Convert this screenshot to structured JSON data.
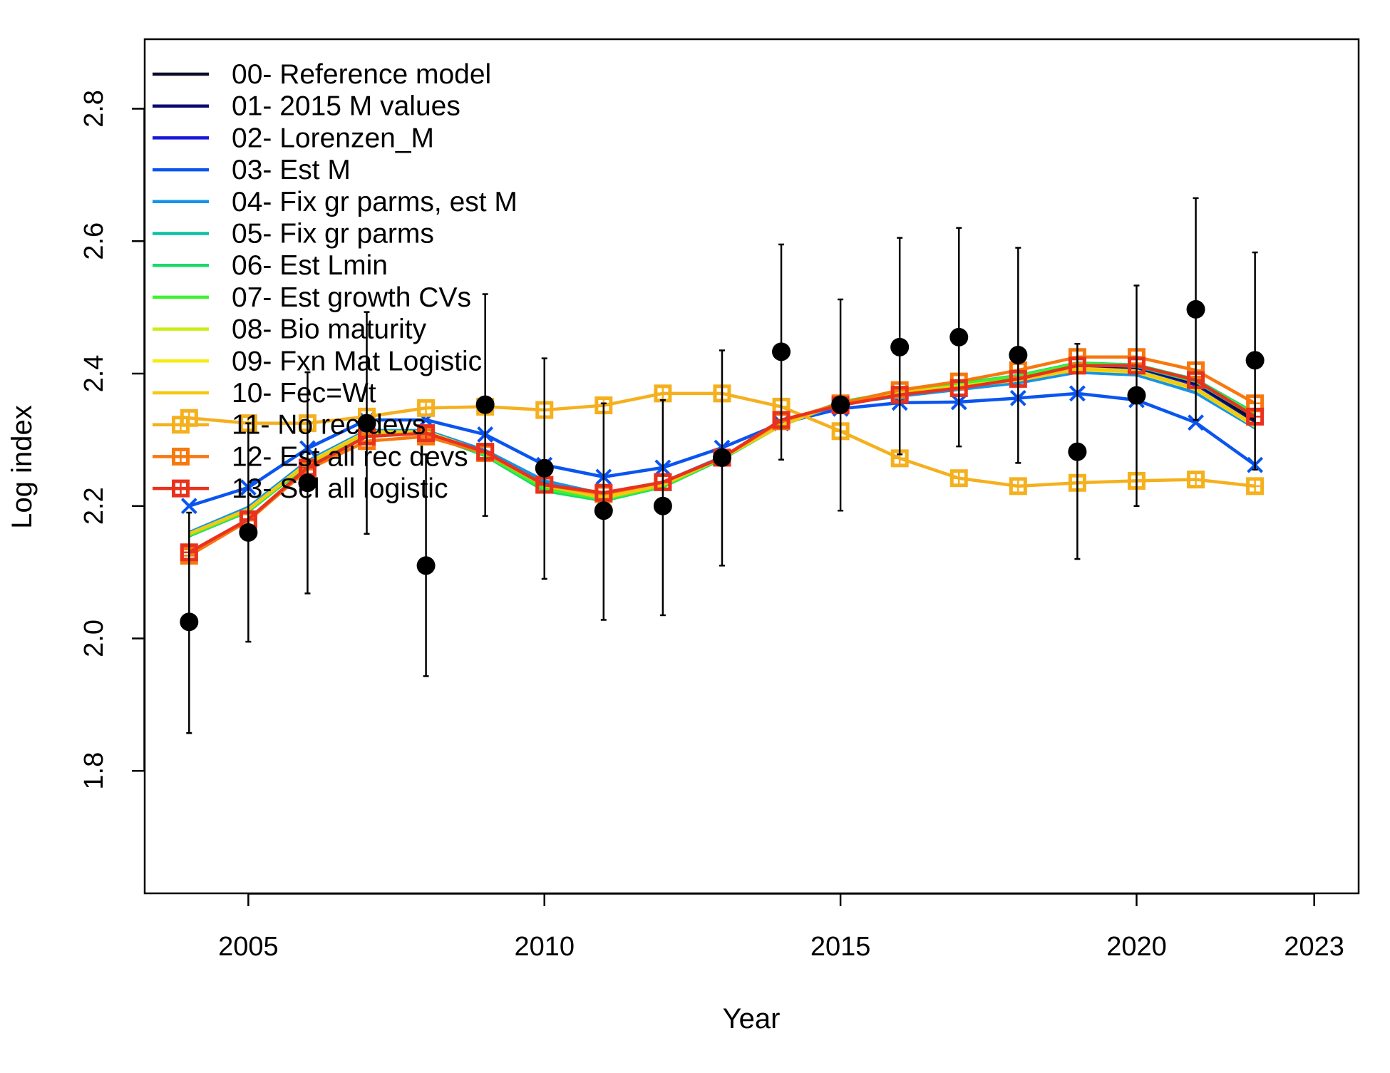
{
  "chart_data": {
    "type": "line",
    "xlabel": "Year",
    "ylabel": "Log index",
    "xlim": [
      2003.25,
      2023.75
    ],
    "ylim": [
      1.615,
      2.905
    ],
    "x_ticks": [
      2005,
      2010,
      2015,
      2020,
      2023
    ],
    "x_tick_labels": [
      "2005",
      "2010",
      "2015",
      "2020",
      "2023"
    ],
    "y_ticks": [
      1.8,
      2.0,
      2.2,
      2.4,
      2.6,
      2.8
    ],
    "y_tick_labels": [
      "1.8",
      "2.0",
      "2.2",
      "2.4",
      "2.6",
      "2.8"
    ],
    "legend_position": "top-left",
    "grid": false,
    "years": [
      2004,
      2005,
      2006,
      2007,
      2008,
      2009,
      2010,
      2011,
      2012,
      2013,
      2014,
      2015,
      2016,
      2017,
      2018,
      2019,
      2020,
      2021,
      2022
    ],
    "observed": {
      "marker_color": "#000000",
      "values": [
        2.025,
        2.16,
        2.235,
        2.325,
        2.11,
        2.353,
        2.257,
        2.193,
        2.2,
        2.273,
        2.433,
        2.353,
        2.44,
        2.455,
        2.428,
        2.282,
        2.367,
        2.497,
        2.42
      ],
      "lower": [
        1.857,
        1.995,
        2.068,
        2.158,
        1.943,
        2.185,
        2.09,
        2.028,
        2.035,
        2.11,
        2.27,
        2.193,
        2.278,
        2.29,
        2.265,
        2.12,
        2.2,
        2.33,
        2.255
      ],
      "upper": [
        2.19,
        2.325,
        2.402,
        2.493,
        2.278,
        2.52,
        2.423,
        2.355,
        2.36,
        2.435,
        2.595,
        2.512,
        2.605,
        2.62,
        2.59,
        2.445,
        2.533,
        2.665,
        2.583
      ]
    },
    "series": [
      {
        "name": "00- Reference model",
        "color": "#0b0b2a",
        "marker": "none",
        "values": [
          2.155,
          2.193,
          2.265,
          2.312,
          2.312,
          2.282,
          2.233,
          2.213,
          2.233,
          2.273,
          2.322,
          2.357,
          2.372,
          2.383,
          2.393,
          2.412,
          2.409,
          2.385,
          2.33
        ]
      },
      {
        "name": "01- 2015 M values",
        "color": "#0b0b6e",
        "marker": "none",
        "values": [
          2.155,
          2.193,
          2.264,
          2.311,
          2.311,
          2.281,
          2.232,
          2.213,
          2.233,
          2.273,
          2.322,
          2.356,
          2.371,
          2.382,
          2.392,
          2.41,
          2.407,
          2.382,
          2.325
        ]
      },
      {
        "name": "02- Lorenzen_M",
        "color": "#1a1ad6",
        "marker": "none",
        "values": [
          2.155,
          2.192,
          2.263,
          2.31,
          2.31,
          2.28,
          2.232,
          2.213,
          2.233,
          2.273,
          2.322,
          2.356,
          2.37,
          2.381,
          2.391,
          2.408,
          2.405,
          2.38,
          2.322
        ]
      },
      {
        "name": "03- Est M",
        "color": "#0a55f0",
        "marker": "x",
        "values": [
          2.2,
          2.228,
          2.287,
          2.33,
          2.33,
          2.308,
          2.262,
          2.244,
          2.258,
          2.288,
          2.325,
          2.347,
          2.356,
          2.357,
          2.363,
          2.37,
          2.36,
          2.326,
          2.262
        ]
      },
      {
        "name": "04- Fix gr parms, est M",
        "color": "#1494e8",
        "marker": "none",
        "values": [
          2.16,
          2.198,
          2.268,
          2.314,
          2.314,
          2.284,
          2.238,
          2.218,
          2.236,
          2.274,
          2.322,
          2.354,
          2.366,
          2.376,
          2.386,
          2.402,
          2.398,
          2.371,
          2.318
        ]
      },
      {
        "name": "05- Fix gr parms",
        "color": "#0fbfa5",
        "marker": "none",
        "values": [
          2.155,
          2.193,
          2.263,
          2.31,
          2.31,
          2.279,
          2.228,
          2.208,
          2.23,
          2.272,
          2.322,
          2.357,
          2.372,
          2.384,
          2.395,
          2.414,
          2.411,
          2.388,
          2.335
        ]
      },
      {
        "name": "06- Est Lmin",
        "color": "#18d96a",
        "marker": "none",
        "values": [
          2.155,
          2.192,
          2.262,
          2.31,
          2.309,
          2.276,
          2.223,
          2.208,
          2.229,
          2.271,
          2.322,
          2.357,
          2.373,
          2.385,
          2.397,
          2.416,
          2.413,
          2.391,
          2.34
        ]
      },
      {
        "name": "07- Est growth CVs",
        "color": "#3ff22f",
        "marker": "none",
        "values": [
          2.156,
          2.193,
          2.263,
          2.311,
          2.31,
          2.278,
          2.226,
          2.21,
          2.23,
          2.272,
          2.322,
          2.357,
          2.373,
          2.384,
          2.396,
          2.415,
          2.412,
          2.389,
          2.338
        ]
      },
      {
        "name": "08- Bio maturity",
        "color": "#c9ee14",
        "marker": "none",
        "values": [
          2.158,
          2.195,
          2.265,
          2.312,
          2.312,
          2.281,
          2.232,
          2.213,
          2.233,
          2.273,
          2.322,
          2.356,
          2.371,
          2.381,
          2.391,
          2.408,
          2.404,
          2.378,
          2.322
        ]
      },
      {
        "name": "09- Fxn Mat Logistic",
        "color": "#f5ec12",
        "marker": "none",
        "values": [
          2.158,
          2.195,
          2.265,
          2.312,
          2.312,
          2.281,
          2.232,
          2.213,
          2.233,
          2.273,
          2.322,
          2.356,
          2.37,
          2.38,
          2.39,
          2.406,
          2.402,
          2.376,
          2.32
        ]
      },
      {
        "name": "10- Fec=Wt",
        "color": "#f5c812",
        "marker": "none",
        "values": [
          2.158,
          2.195,
          2.264,
          2.311,
          2.311,
          2.28,
          2.231,
          2.212,
          2.232,
          2.273,
          2.322,
          2.356,
          2.37,
          2.38,
          2.39,
          2.407,
          2.403,
          2.377,
          2.321
        ]
      },
      {
        "name": "11- No rec devs",
        "color": "#f5b01e",
        "marker": "square",
        "values": [
          2.333,
          2.325,
          2.325,
          2.335,
          2.348,
          2.35,
          2.345,
          2.352,
          2.37,
          2.37,
          2.35,
          2.313,
          2.272,
          2.242,
          2.23,
          2.235,
          2.238,
          2.24,
          2.23
        ]
      },
      {
        "name": "12- Est all rec devs",
        "color": "#f7780f",
        "marker": "square",
        "values": [
          2.125,
          2.178,
          2.255,
          2.298,
          2.305,
          2.28,
          2.232,
          2.218,
          2.236,
          2.273,
          2.328,
          2.355,
          2.375,
          2.388,
          2.405,
          2.425,
          2.425,
          2.405,
          2.355
        ]
      },
      {
        "name": "13- Sel all logistic",
        "color": "#e8321e",
        "marker": "square",
        "values": [
          2.13,
          2.18,
          2.258,
          2.305,
          2.31,
          2.282,
          2.232,
          2.22,
          2.236,
          2.273,
          2.33,
          2.352,
          2.368,
          2.378,
          2.392,
          2.412,
          2.412,
          2.39,
          2.335
        ]
      }
    ]
  }
}
